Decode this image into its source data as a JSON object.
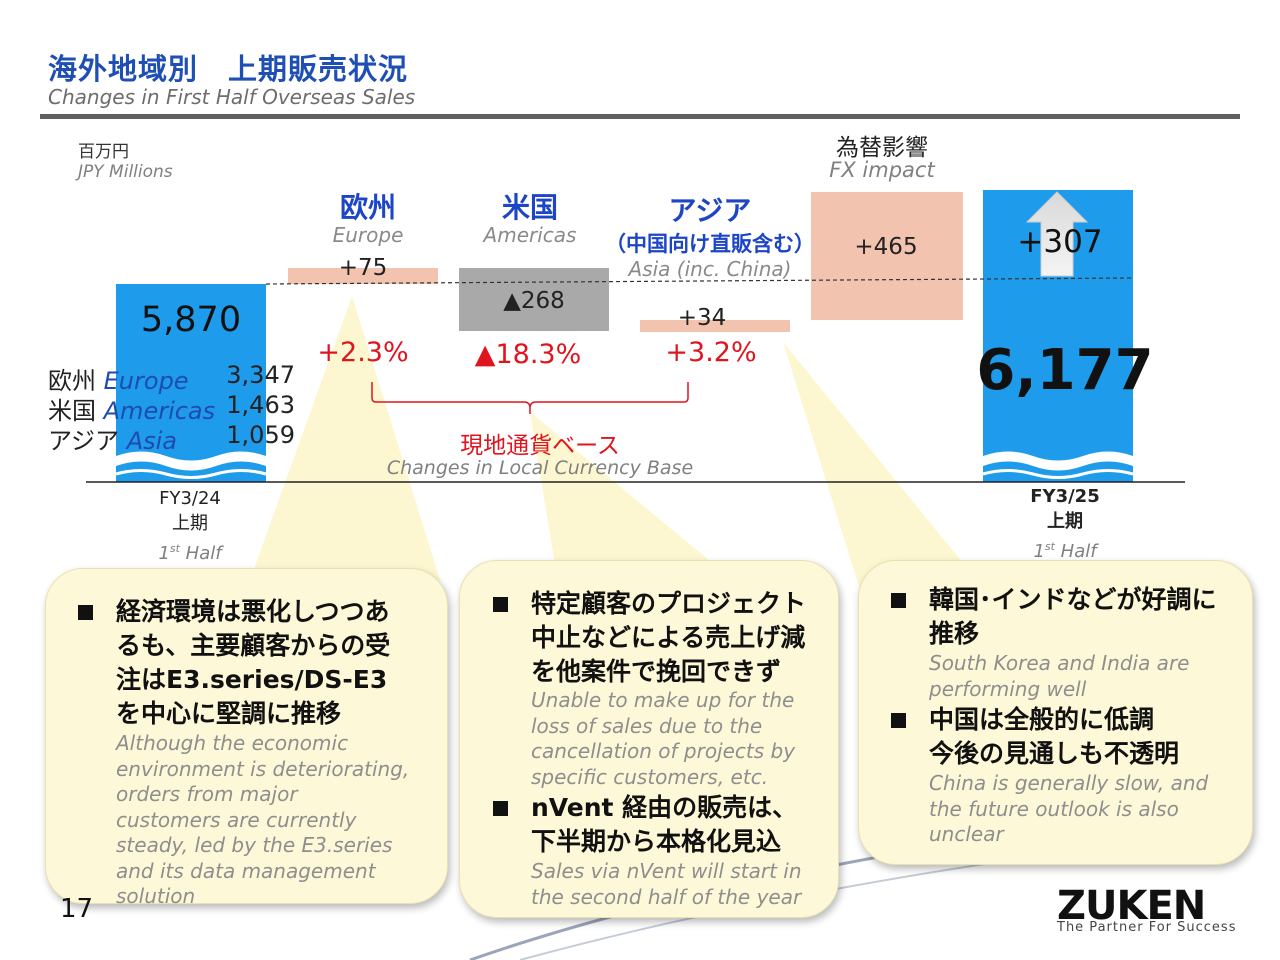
{
  "header": {
    "title_jp": "海外地域別　上期販売状況",
    "title_en": "Changes in First Half Overseas Sales"
  },
  "unit": {
    "jp": "百万円",
    "en": "JPY Millions"
  },
  "fx_header": {
    "jp": "為替影響",
    "en": "FX impact"
  },
  "categories": [
    {
      "jp": "欧州",
      "en": "Europe"
    },
    {
      "jp": "米国",
      "en": "Americas"
    },
    {
      "jp": "アジア",
      "jp_sub": "（中国向け直販含む）",
      "en": "Asia (inc. China)"
    }
  ],
  "breakdown": [
    {
      "jp": "欧州",
      "en": "Europe",
      "value": "3,347"
    },
    {
      "jp": "米国",
      "en": "Americas",
      "value": "1,463"
    },
    {
      "jp": "アジア",
      "en": "Asia",
      "value": "1,059"
    }
  ],
  "local_currency": {
    "jp": "現地通貨ベース",
    "en": "Changes in Local Currency Base"
  },
  "periods": [
    {
      "fy": "FY3/24",
      "half_jp": "上期",
      "half_en_num": "1",
      "half_en_sup": "st",
      "half_en": " Half",
      "bold": false
    },
    {
      "fy": "FY3/25",
      "half_jp": "上期",
      "half_en_num": "1",
      "half_en_sup": "st",
      "half_en": " Half",
      "bold": true
    }
  ],
  "chart_data": {
    "type": "bar",
    "subtype": "waterfall",
    "unit": "JPY Millions",
    "ylim": [
      0,
      7000
    ],
    "bars": [
      {
        "name": "FY3/24 上期",
        "kind": "total",
        "value": 5870,
        "label": "5,870",
        "color": "#1e9bea"
      },
      {
        "name": "Europe",
        "kind": "delta",
        "value": 75,
        "label": "+75",
        "pct": "+2.3%",
        "color": "#f2c4b0"
      },
      {
        "name": "Americas",
        "kind": "delta",
        "value": -268,
        "label": "▲268",
        "pct": "▲18.3%",
        "color": "#a9a9a9"
      },
      {
        "name": "Asia (inc. China)",
        "kind": "delta",
        "value": 34,
        "label": "+34",
        "pct": "+3.2%",
        "color": "#f2c4b0"
      },
      {
        "name": "FX impact",
        "kind": "delta",
        "value": 465,
        "label": "+465",
        "color": "#f2c4b0"
      },
      {
        "name": "FY3/25 上期",
        "kind": "total",
        "value": 6177,
        "label": "6,177",
        "delta_label": "+307",
        "color": "#1e9bea"
      }
    ]
  },
  "callouts": [
    {
      "bullets": [
        {
          "jp": "経済環境は悪化しつつあるも、主要顧客からの受注はE3.series/DS-E3を中心に堅調に推移",
          "jp_lines": [
            "経済環境は悪化しつつあ",
            "るも、主要顧客からの受",
            "注はE3.series/DS-E3",
            "を中心に堅調に推移"
          ],
          "en": "Although the economic environment is deteriorating, orders from major customers are currently steady, led by the E3.series and its data management solution",
          "en_lines": [
            "Although the economic",
            "environment is deteriorating,",
            "orders from major",
            "customers are currently",
            "steady, led by the E3.series",
            "and its data management",
            "solution"
          ]
        }
      ]
    },
    {
      "bullets": [
        {
          "jp_lines": [
            "特定顧客のプロジェクト",
            "中止などによる売上げ減",
            "を他案件で挽回できず"
          ],
          "en_lines": [
            "Unable to make up for the",
            "loss of sales due to the",
            "cancellation of projects by",
            "specific customers, etc."
          ]
        },
        {
          "jp_lines": [
            "nVent 経由の販売は、",
            "下半期から本格化見込"
          ],
          "en_lines": [
            "Sales via nVent will start in",
            "the second half of the year"
          ]
        }
      ]
    },
    {
      "bullets": [
        {
          "jp_lines": [
            "韓国･インドなどが好調に",
            "推移"
          ],
          "en_lines": [
            "South Korea and India are",
            "performing well"
          ]
        },
        {
          "jp_lines": [
            "中国は全般的に低調",
            "今後の見通しも不透明"
          ],
          "en_lines": [
            "China is generally slow, and",
            "the future outlook is also",
            "unclear"
          ]
        }
      ]
    }
  ],
  "footer": {
    "page": "17",
    "logo": "ZUKEN",
    "tagline": "The Partner For Success"
  }
}
